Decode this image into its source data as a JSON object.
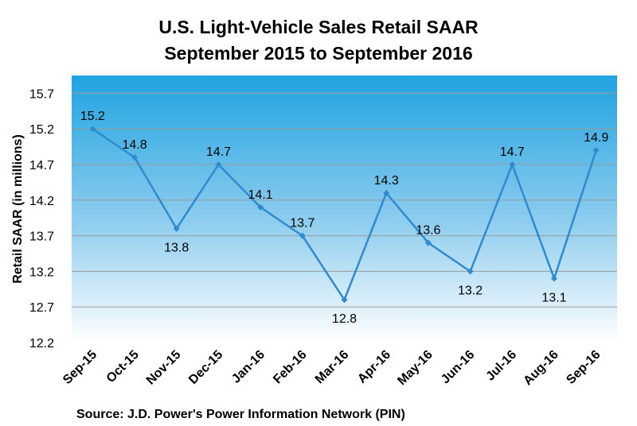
{
  "chart_data": {
    "type": "line",
    "title_line1": "U.S. Light-Vehicle Sales Retail SAAR",
    "title_line2": "September 2015 to September 2016",
    "xlabel": "",
    "ylabel": "Retail SAAR (in millions)",
    "categories": [
      "Sep-15",
      "Oct-15",
      "Nov-15",
      "Dec-15",
      "Jan-16",
      "Feb-16",
      "Mar-16",
      "Apr-16",
      "May-16",
      "Jun-16",
      "Jul-16",
      "Aug-16",
      "Sep-16"
    ],
    "series": [
      {
        "values": [
          15.2,
          14.8,
          13.8,
          14.7,
          14.1,
          13.7,
          12.8,
          14.3,
          13.6,
          13.2,
          14.7,
          13.1,
          14.9
        ]
      }
    ],
    "data_labels": [
      "15.2",
      "14.8",
      "13.8",
      "14.7",
      "14.1",
      "13.7",
      "12.8",
      "14.3",
      "13.6",
      "13.2",
      "14.7",
      "13.1",
      "14.9"
    ],
    "yticks": [
      "12.2",
      "12.7",
      "13.2",
      "13.7",
      "14.2",
      "14.7",
      "15.2",
      "15.7"
    ],
    "ylim": [
      12.2,
      15.95
    ],
    "grid": true,
    "line_color": "#2f8bd0",
    "bg_top_color": "#1fa3e0",
    "bg_bottom_color": "#ffffff",
    "source": "Source: J.D. Power's Power Information Network (PIN)"
  }
}
